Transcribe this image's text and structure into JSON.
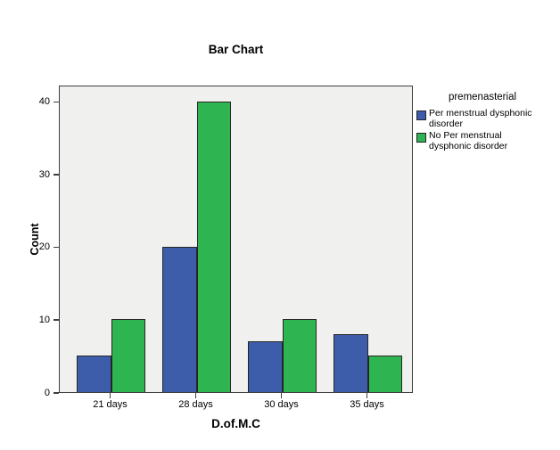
{
  "chart_data": {
    "type": "bar",
    "title": "Bar Chart",
    "categories": [
      "21 days",
      "28 days",
      "30 days",
      "35 days"
    ],
    "series": [
      {
        "name": "Per menstrual dysphonic disorder",
        "color": "#3D5CAA",
        "values": [
          5,
          20,
          7,
          8
        ]
      },
      {
        "name": "No Per menstrual dysphonic disorder",
        "color": "#2FB452",
        "values": [
          10,
          40,
          10,
          5
        ]
      }
    ],
    "xlabel": "D.of.M.C",
    "ylabel": "Count",
    "ylim": [
      0,
      42.3
    ],
    "yticks": [
      0,
      10,
      20,
      30,
      40
    ],
    "legend_title": "premenasterial",
    "legend_position": "right",
    "grid": false,
    "plot_bg": "#F0F0EE"
  }
}
